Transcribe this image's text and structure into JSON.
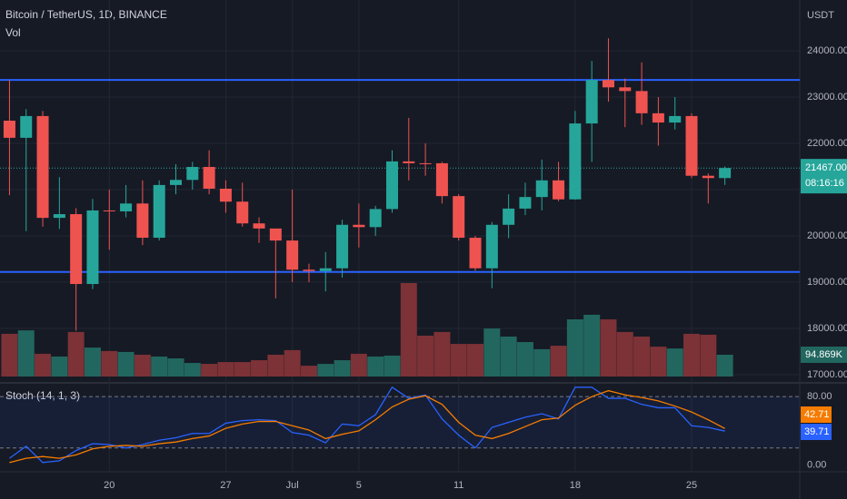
{
  "header": {
    "symbol": "Bitcoin / TetherUS, 1D, BINANCE",
    "volume_title": "Vol"
  },
  "chart_data": [
    {
      "type": "candlestick",
      "unit": "USDT",
      "open": [
        22490,
        22120,
        22590,
        20390,
        20470,
        18960,
        20550,
        20530,
        20700,
        19960,
        21100,
        21210,
        21490,
        21020,
        20740,
        20270,
        20160,
        19900,
        19270,
        19240,
        19300,
        20240,
        20190,
        20580,
        21610,
        21570,
        21570,
        20860,
        19960,
        19300,
        20240,
        20590,
        20840,
        21200,
        20790,
        22430,
        23370,
        23210,
        23130,
        22650,
        22450,
        22590,
        21300,
        21250
      ],
      "high": [
        23370,
        22740,
        22700,
        21270,
        20600,
        20800,
        21000,
        21100,
        21200,
        21200,
        21550,
        21600,
        21850,
        21200,
        21150,
        20400,
        20150,
        21000,
        19400,
        19650,
        20350,
        20700,
        20650,
        21850,
        22550,
        22000,
        21600,
        20900,
        20000,
        20300,
        20900,
        21150,
        21650,
        21600,
        22700,
        23780,
        24270,
        23400,
        23750,
        23000,
        23000,
        22650,
        21350,
        21500
      ],
      "low": [
        20880,
        20100,
        20200,
        20150,
        17950,
        18850,
        19700,
        20400,
        19800,
        19900,
        20900,
        21000,
        20900,
        20500,
        20200,
        19850,
        18650,
        19000,
        19000,
        18800,
        19100,
        19750,
        20000,
        20500,
        21200,
        21300,
        20700,
        19900,
        19250,
        18870,
        19950,
        20450,
        20550,
        20750,
        20780,
        21600,
        22900,
        22350,
        22400,
        21950,
        22300,
        21250,
        20700,
        21100
      ],
      "close": [
        22120,
        22590,
        20390,
        20470,
        18960,
        20550,
        20530,
        20700,
        19960,
        21100,
        21210,
        21490,
        21020,
        20740,
        20270,
        20160,
        19900,
        19270,
        19240,
        19300,
        20240,
        20190,
        20580,
        21610,
        21570,
        21550,
        20860,
        19960,
        19300,
        20240,
        20590,
        20840,
        21200,
        20790,
        22430,
        23370,
        23210,
        23130,
        22650,
        22450,
        22590,
        21300,
        21250,
        21467
      ],
      "last_price_label": "21467.00",
      "countdown": "08:16:16",
      "up_color": "#26a69a",
      "down_color": "#ef5350",
      "levels": [
        23370,
        19220
      ],
      "level_color": "#2962ff",
      "xlim": [
        -0.57,
        47.5
      ],
      "xticks": [
        {
          "value": 6,
          "label": "20"
        },
        {
          "value": 13,
          "label": "27"
        },
        {
          "value": 17,
          "label": "Jul"
        },
        {
          "value": 21,
          "label": "5"
        },
        {
          "value": 27,
          "label": "11"
        },
        {
          "value": 34,
          "label": "18"
        },
        {
          "value": 41,
          "label": "25"
        }
      ],
      "ylim": [
        16863,
        25098
      ],
      "yticks": [
        {
          "value": 17000,
          "label": "17000.00"
        },
        {
          "value": 18000,
          "label": "18000.00"
        },
        {
          "value": 19000,
          "label": "19000.00"
        },
        {
          "value": 20000,
          "label": "20000.00"
        },
        {
          "value": 21000,
          "label": "21000.00"
        },
        {
          "value": 22000,
          "label": "22000.00"
        },
        {
          "value": 23000,
          "label": "23000.00"
        },
        {
          "value": 24000,
          "label": "24000.00"
        }
      ],
      "grid": true
    },
    {
      "type": "volume",
      "values": [
        186,
        201,
        99,
        87,
        194,
        126,
        111,
        107,
        95,
        87,
        79,
        59,
        55,
        63,
        63,
        71,
        95,
        115,
        47,
        55,
        71,
        99,
        87,
        91,
        407,
        178,
        194,
        142,
        142,
        209,
        174,
        150,
        119,
        134,
        249,
        269,
        249,
        194,
        174,
        130,
        122,
        186,
        182,
        94.869
      ],
      "last_value_label": "94.869K",
      "up_color": "#22675f",
      "down_color": "#7c3236"
    },
    {
      "type": "line",
      "title": "Stoch (14, 1, 3)",
      "series": [
        {
          "color": "#2962ff",
          "values": [
            8,
            22,
            3,
            5,
            17,
            25,
            24,
            20,
            24,
            29,
            32,
            37,
            37,
            49,
            52,
            53,
            52,
            38,
            35,
            26,
            48,
            46,
            59,
            91,
            78,
            82,
            54,
            35,
            20,
            44,
            50,
            56,
            60,
            54,
            91,
            91,
            78,
            78,
            71,
            67,
            67,
            46,
            44,
            39.71
          ]
        },
        {
          "color": "#f57c00",
          "values": [
            3,
            8,
            10,
            8,
            12,
            19,
            22,
            23,
            22,
            25,
            27,
            31,
            34,
            43,
            48,
            51,
            51,
            46,
            41,
            31,
            36,
            40,
            53,
            68,
            77,
            81,
            71,
            50,
            35,
            31,
            37,
            45,
            53,
            55,
            70,
            80,
            87,
            82,
            79,
            75,
            69,
            62,
            53,
            42.71
          ]
        }
      ],
      "bands": [
        20,
        80
      ],
      "ylim": [
        -7.8,
        96.1
      ],
      "yticks": [
        {
          "value": 0,
          "label": "0.00"
        },
        {
          "value": 80,
          "label": "80.00"
        }
      ]
    }
  ]
}
